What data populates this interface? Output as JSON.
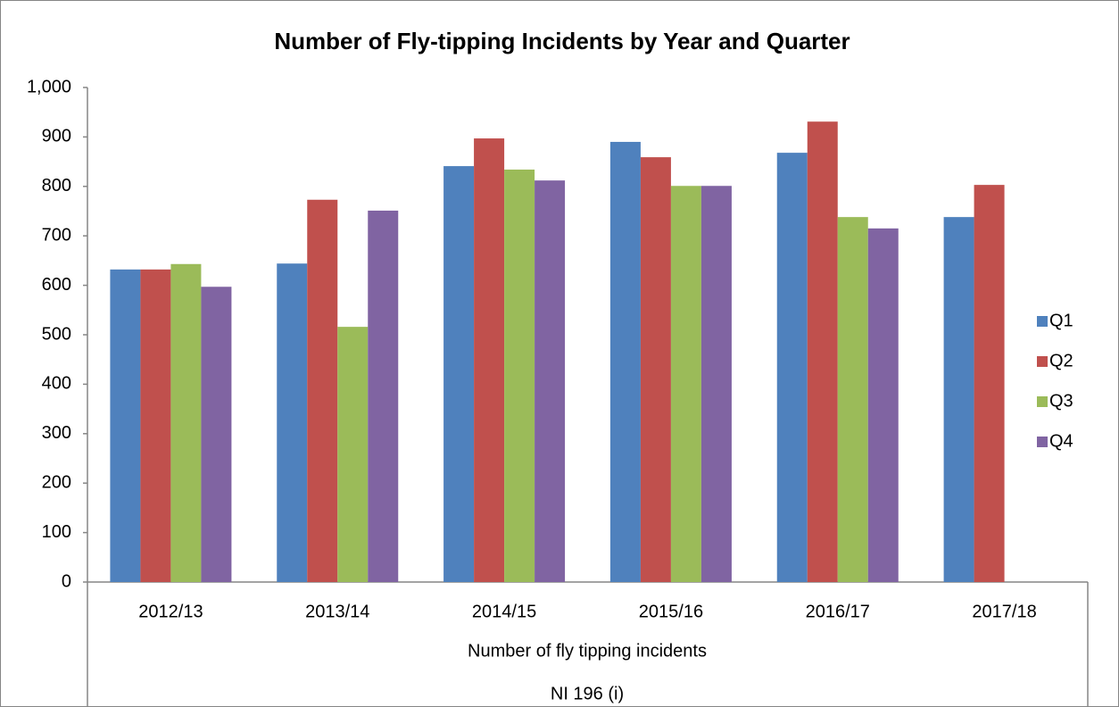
{
  "chart_data": {
    "type": "bar",
    "title": "Number of Fly-tipping Incidents by Year and Quarter",
    "categories": [
      "2012/13",
      "2013/14",
      "2014/15",
      "2015/16",
      "2016/17",
      "2017/18"
    ],
    "x_axis_labels": [
      "Number of fly tipping incidents",
      "NI 196 (i)"
    ],
    "series": [
      {
        "name": "Q1",
        "color": "#4f81bd",
        "values": [
          632,
          644,
          841,
          890,
          868,
          738
        ]
      },
      {
        "name": "Q2",
        "color": "#c0504d",
        "values": [
          632,
          773,
          897,
          859,
          931,
          803
        ]
      },
      {
        "name": "Q3",
        "color": "#9bbb59",
        "values": [
          643,
          516,
          834,
          801,
          738,
          null
        ]
      },
      {
        "name": "Q4",
        "color": "#8064a2",
        "values": [
          597,
          751,
          812,
          801,
          715,
          null
        ]
      }
    ],
    "ylim": [
      0,
      1000
    ],
    "yticks": [
      0,
      100,
      200,
      300,
      400,
      500,
      600,
      700,
      800,
      900,
      {
        "value": 1000,
        "label": "1,000"
      }
    ],
    "grid": false,
    "legend": "right"
  }
}
